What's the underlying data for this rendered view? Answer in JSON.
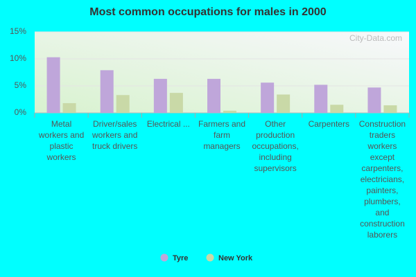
{
  "chart_data": {
    "type": "bar",
    "title": "Most common occupations for males in 2000",
    "watermark": "City-Data.com",
    "categories": [
      "Metal workers and plastic workers",
      "Driver/sales workers and truck drivers",
      "Electrical ...",
      "Farmers and farm managers",
      "Other production occupations, including supervisors",
      "Carpenters",
      "Construction traders workers except carpenters, electricians, painters, plumbers, and construction laborers"
    ],
    "series": [
      {
        "name": "Tyre",
        "color": "#bfa6da",
        "values": [
          10.3,
          7.9,
          6.3,
          6.3,
          5.6,
          5.2,
          4.7
        ]
      },
      {
        "name": "New York",
        "color": "#c9d9a7",
        "values": [
          1.8,
          3.3,
          3.7,
          0.4,
          3.4,
          1.5,
          1.4
        ]
      }
    ],
    "ylim": [
      0,
      15
    ],
    "yticks": [
      {
        "value": 0,
        "label": "0%"
      },
      {
        "value": 5,
        "label": "5%"
      },
      {
        "value": 10,
        "label": "10%"
      },
      {
        "value": 15,
        "label": "15%"
      }
    ],
    "grid": true
  }
}
